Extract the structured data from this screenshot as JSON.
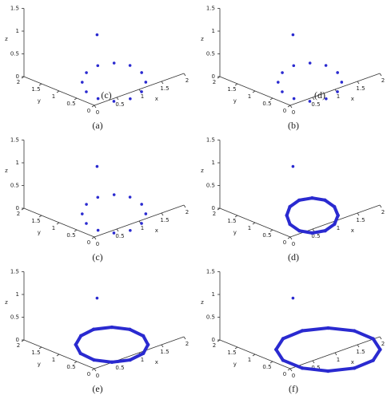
{
  "chart_data": [
    {
      "type": "scatter3d",
      "caption": "(a)",
      "annotation": "(c)",
      "xlabel": "x",
      "ylabel": "y",
      "zlabel": "z",
      "xlim": [
        0,
        2
      ],
      "ylim": [
        0,
        2
      ],
      "zlim": [
        0,
        1.5
      ],
      "xticks": [
        0,
        0.5,
        1,
        1.5,
        2
      ],
      "yticks": [
        0,
        0.5,
        1,
        1.5,
        2
      ],
      "zticks": [
        0,
        0.5,
        1,
        1.5
      ],
      "color": "#2a2ad0",
      "connect": false,
      "points": {
        "x": [
          1.29,
          0.96,
          0.62,
          0.35,
          0.24,
          0.3,
          0.53,
          0.86,
          1.2,
          1.47,
          1.59,
          1.52
        ],
        "y": [
          0.18,
          -0.12,
          -0.23,
          -0.11,
          0.2,
          0.61,
          1.02,
          1.32,
          1.43,
          1.31,
          1.01,
          0.59
        ],
        "z": [
          0,
          0,
          0,
          0,
          0,
          0,
          0,
          0,
          0,
          0,
          0,
          0
        ]
      },
      "star": {
        "x": 0.1,
        "y": 0.05,
        "z": 1.5
      }
    },
    {
      "type": "scatter3d",
      "caption": "(b)",
      "annotation": "(d)",
      "xlabel": "x",
      "ylabel": "y",
      "zlabel": "z",
      "xlim": [
        0,
        2
      ],
      "ylim": [
        0,
        2
      ],
      "zlim": [
        0,
        1.5
      ],
      "xticks": [
        0,
        0.5,
        1,
        1.5,
        2
      ],
      "yticks": [
        0,
        0.5,
        1,
        1.5,
        2
      ],
      "zticks": [
        0,
        0.5,
        1,
        1.5
      ],
      "color": "#2a2ad0",
      "connect": false,
      "points": {
        "x": [
          1.29,
          0.96,
          0.62,
          0.35,
          0.24,
          0.3,
          0.53,
          0.86,
          1.2,
          1.47,
          1.59,
          1.52
        ],
        "y": [
          0.18,
          -0.12,
          -0.23,
          -0.11,
          0.2,
          0.61,
          1.02,
          1.32,
          1.43,
          1.31,
          1.01,
          0.59
        ],
        "z": [
          0,
          0,
          0,
          0,
          0,
          0,
          0,
          0,
          0,
          0,
          0,
          0
        ]
      },
      "star": {
        "x": 0.1,
        "y": 0.05,
        "z": 1.5
      }
    },
    {
      "type": "scatter3d",
      "caption": "(c)",
      "xlabel": "x",
      "ylabel": "y",
      "zlabel": "z",
      "xlim": [
        0,
        2
      ],
      "ylim": [
        0,
        2
      ],
      "zlim": [
        0,
        1.5
      ],
      "xticks": [
        0,
        0.5,
        1,
        1.5,
        2
      ],
      "yticks": [
        0,
        0.5,
        1,
        1.5,
        2
      ],
      "zticks": [
        0,
        0.5,
        1,
        1.5
      ],
      "color": "#2a2ad0",
      "connect": false,
      "points": {
        "x": [
          1.29,
          0.96,
          0.62,
          0.35,
          0.24,
          0.3,
          0.53,
          0.86,
          1.2,
          1.47,
          1.59,
          1.52
        ],
        "y": [
          0.18,
          -0.12,
          -0.23,
          -0.11,
          0.2,
          0.61,
          1.02,
          1.32,
          1.43,
          1.31,
          1.01,
          0.59
        ],
        "z": [
          0,
          0,
          0,
          0,
          0,
          0,
          0,
          0,
          0,
          0,
          0,
          0
        ]
      },
      "star": {
        "x": 0.1,
        "y": 0.05,
        "z": 1.5
      }
    },
    {
      "type": "scatter3d",
      "caption": "(d)",
      "xlabel": "x",
      "ylabel": "y",
      "zlabel": "z",
      "xlim": [
        0,
        2
      ],
      "ylim": [
        0,
        2
      ],
      "zlim": [
        0,
        1.5
      ],
      "xticks": [
        0,
        0.5,
        1,
        1.5,
        2
      ],
      "yticks": [
        0,
        0.5,
        1,
        1.5,
        2
      ],
      "zticks": [
        0,
        0.5,
        1,
        1.5
      ],
      "color": "#2a2ad0",
      "connect": true,
      "points": {
        "x": [
          1.2,
          0.9,
          0.6,
          0.38,
          0.29,
          0.37,
          0.59,
          0.88,
          1.18,
          1.4,
          1.49,
          1.41
        ],
        "y": [
          0.17,
          -0.11,
          -0.23,
          -0.14,
          0.11,
          0.48,
          0.85,
          1.13,
          1.25,
          1.16,
          0.91,
          0.54
        ],
        "z": [
          0,
          0,
          0,
          0,
          0,
          0,
          0,
          0,
          0,
          0,
          0,
          0
        ]
      },
      "star": {
        "x": 0.1,
        "y": 0.05,
        "z": 1.5
      }
    },
    {
      "type": "scatter3d",
      "caption": "(e)",
      "xlabel": "x",
      "ylabel": "y",
      "zlabel": "z",
      "xlim": [
        0,
        2
      ],
      "ylim": [
        0,
        2
      ],
      "zlim": [
        0,
        1.5
      ],
      "xticks": [
        0,
        0.5,
        1,
        1.5,
        2
      ],
      "yticks": [
        0,
        0.5,
        1,
        1.5,
        2
      ],
      "zticks": [
        0,
        0.5,
        1,
        1.5
      ],
      "color": "#2a2ad0",
      "connect": true,
      "points": {
        "x": [
          1.34,
          1.03,
          0.68,
          0.4,
          0.25,
          0.28,
          0.48,
          0.8,
          1.14,
          1.42,
          1.57,
          1.54
        ],
        "y": [
          0.18,
          -0.08,
          -0.15,
          0.01,
          0.33,
          0.75,
          1.14,
          1.4,
          1.47,
          1.31,
          0.99,
          0.57
        ],
        "z": [
          0,
          0,
          0,
          0,
          0,
          0,
          0,
          0,
          0,
          0,
          0,
          0
        ]
      },
      "star": {
        "x": 0.1,
        "y": 0.05,
        "z": 1.5
      }
    },
    {
      "type": "scatter3d",
      "caption": "(f)",
      "xlabel": "x",
      "ylabel": "y",
      "zlabel": "z",
      "xlim": [
        0,
        2
      ],
      "ylim": [
        0,
        2
      ],
      "zlim": [
        0,
        1.5
      ],
      "xticks": [
        0,
        0.5,
        1,
        1.5,
        2
      ],
      "yticks": [
        0,
        0.5,
        1,
        1.5,
        2
      ],
      "zticks": [
        0,
        0.5,
        1,
        1.5
      ],
      "color": "#2a2ad0",
      "connect": true,
      "points": {
        "x": [
          1.63,
          1.23,
          0.78,
          0.38,
          0.16,
          0.16,
          0.39,
          0.79,
          1.25,
          1.64,
          1.87,
          1.86
        ],
        "y": [
          -0.48,
          -0.79,
          -0.83,
          -0.59,
          -0.14,
          0.41,
          0.9,
          1.21,
          1.25,
          1.01,
          0.56,
          0.01
        ],
        "z": [
          0,
          0,
          0,
          0,
          0,
          0,
          0,
          0,
          0,
          0,
          0,
          0
        ]
      },
      "star": {
        "x": 0.1,
        "y": 0.05,
        "z": 1.5
      }
    }
  ]
}
